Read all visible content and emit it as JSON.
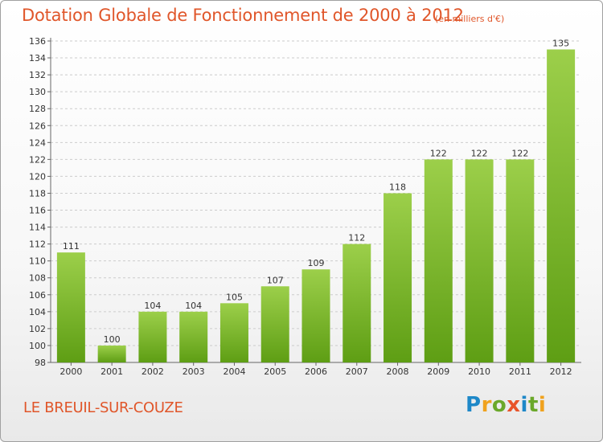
{
  "header": {
    "title": "Dotation Globale de Fonctionnement de 2000 à 2012",
    "unit": "(en milliers d'€)"
  },
  "footer": {
    "commune": "LE BREUIL-SUR-COUZE",
    "logo_letters": [
      "P",
      "r",
      "o",
      "x",
      "i",
      "t",
      "i"
    ]
  },
  "colors": {
    "title": "#e0562a",
    "bar_light": "#9ccf4a",
    "bar_dark": "#5e9e14",
    "grid": "#cccccc"
  },
  "chart_data": {
    "type": "bar",
    "categories": [
      "2000",
      "2001",
      "2002",
      "2003",
      "2004",
      "2005",
      "2006",
      "2007",
      "2008",
      "2009",
      "2010",
      "2011",
      "2012"
    ],
    "values": [
      111,
      100,
      104,
      104,
      105,
      107,
      109,
      112,
      118,
      122,
      122,
      122,
      135
    ],
    "ylim": [
      98,
      136
    ],
    "yticks": [
      98,
      100,
      102,
      104,
      106,
      108,
      110,
      112,
      114,
      116,
      118,
      120,
      122,
      124,
      126,
      128,
      130,
      132,
      134,
      136
    ],
    "grid": true,
    "legend": "none"
  }
}
